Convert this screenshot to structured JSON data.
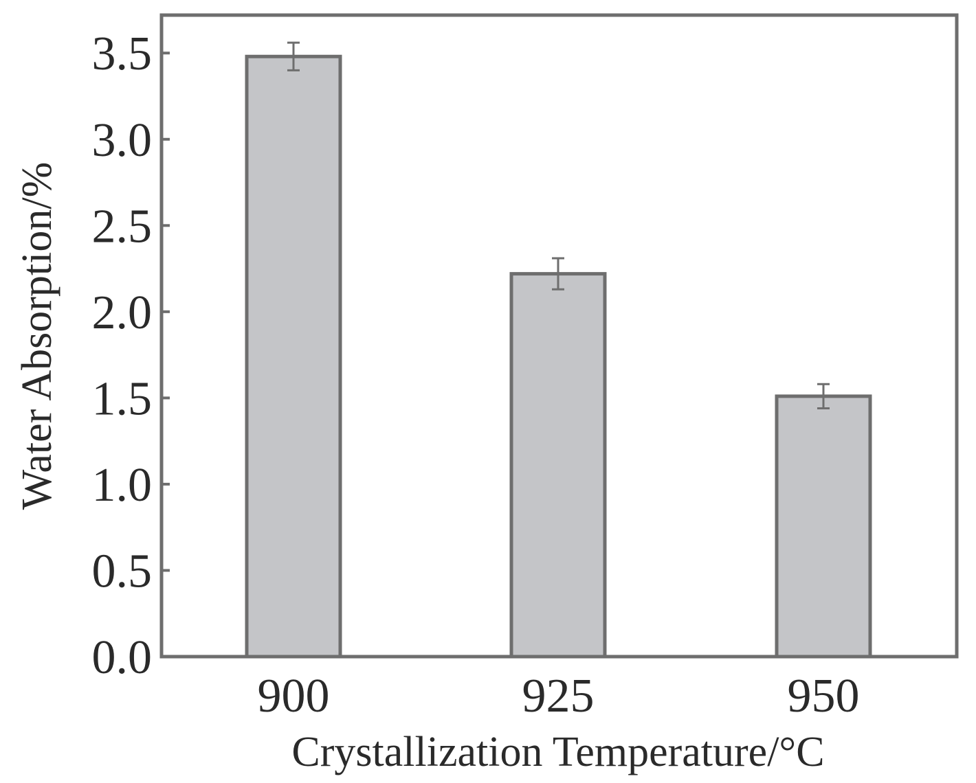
{
  "chart_data": {
    "type": "bar",
    "title": "",
    "xlabel": "Crystallization Temperature/°C",
    "ylabel": "Water Absorption/%",
    "categories": [
      "900",
      "925",
      "950"
    ],
    "values": [
      3.48,
      2.22,
      1.51
    ],
    "errors": [
      0.08,
      0.09,
      0.07
    ],
    "ylim": [
      0.0,
      3.72
    ],
    "yticks": [
      "0.0",
      "0.5",
      "1.0",
      "1.5",
      "2.0",
      "2.5",
      "3.0",
      "3.5"
    ],
    "grid": false,
    "legend": "none",
    "colors": {
      "bar_fill": "#c4c5c8",
      "bar_stroke": "#6e6e6e",
      "axis": "#6e6e6e",
      "error_bar": "#6e6e6e"
    }
  }
}
